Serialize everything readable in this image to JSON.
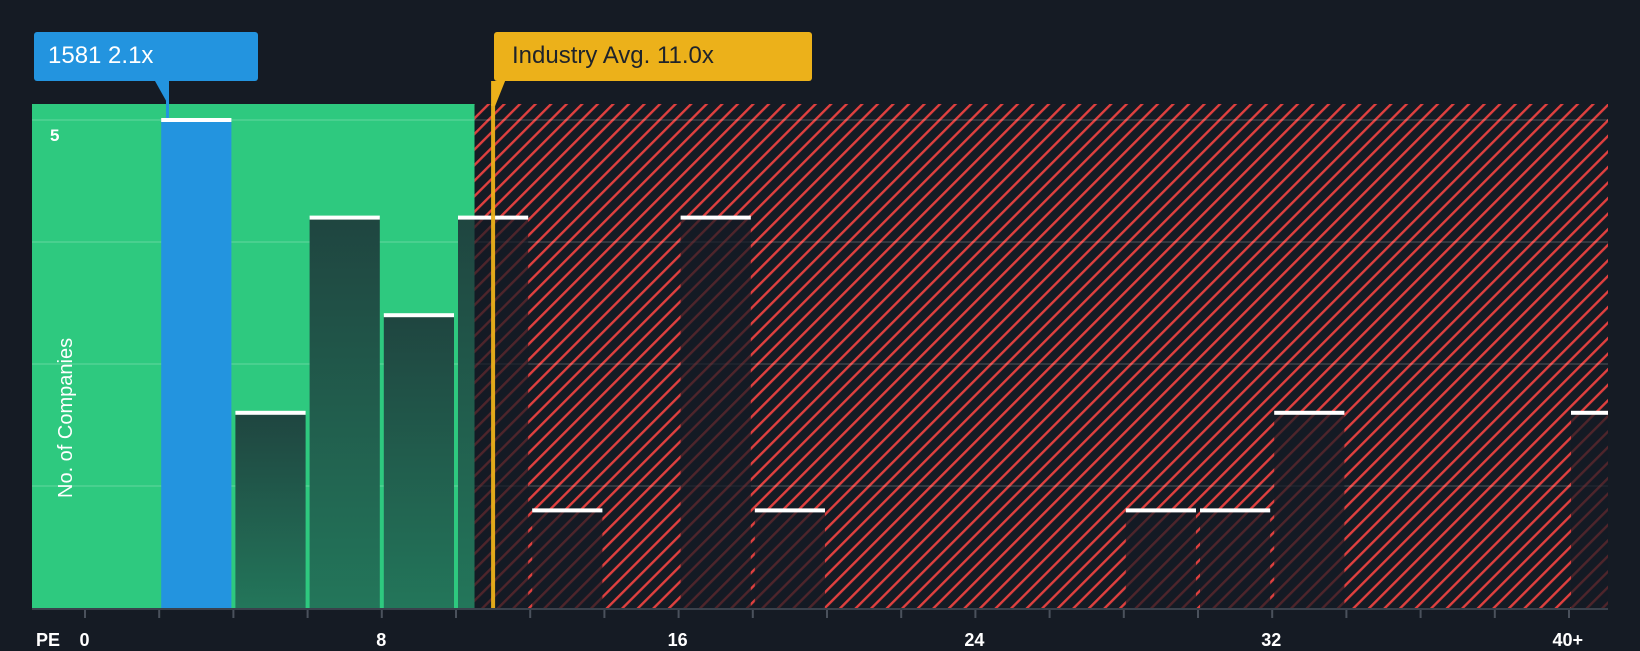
{
  "callouts": {
    "company": "1581 2.1x",
    "industry": "Industry Avg. 11.0x"
  },
  "axis": {
    "x_prefix": "PE",
    "y_label": "No. of Companies",
    "y_top_tick": "5",
    "x_ticks": [
      "0",
      "8",
      "16",
      "24",
      "32",
      "40+"
    ]
  },
  "colors": {
    "background": "#151b24",
    "undervalued_zone": "#2ec97f",
    "overvalued_hatch": "#e0403f",
    "company_bar": "#2394df",
    "industry_line": "#ecb11a",
    "bar_cap": "#ffffff"
  },
  "chart_data": {
    "type": "bar",
    "title": "",
    "xlabel": "PE",
    "ylabel": "No. of Companies",
    "bin_width": 2,
    "categories": [
      "2-4",
      "4-6",
      "6-8",
      "8-10",
      "10-12",
      "12-14",
      "16-18",
      "18-20",
      "28-30",
      "30-32",
      "32-34",
      "40+"
    ],
    "bins_start": [
      2,
      4,
      6,
      8,
      10,
      12,
      16,
      18,
      28,
      30,
      32,
      40
    ],
    "values": [
      5,
      2,
      4,
      3,
      4,
      1,
      4,
      1,
      1,
      1,
      2,
      2
    ],
    "highlight": {
      "category": "2-4",
      "label": "1581",
      "value": 2.1
    },
    "industry_average": 11.0,
    "fair_zone_end": 10.5,
    "x_ticks": [
      0,
      8,
      16,
      24,
      32,
      "40+"
    ],
    "xlim": [
      0,
      41
    ],
    "ylim": [
      0,
      5
    ],
    "grid": true,
    "legend": "none"
  }
}
